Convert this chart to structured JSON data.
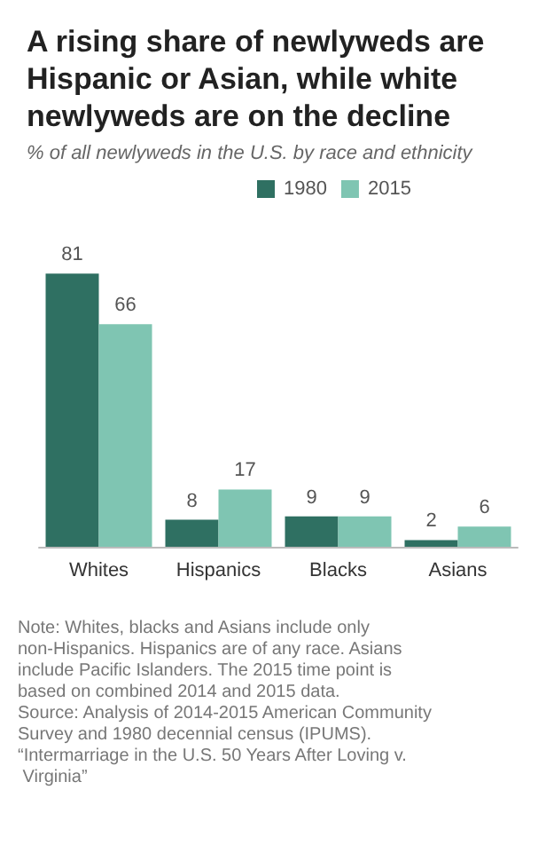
{
  "chart_data": {
    "type": "bar",
    "title": "A rising share of newlyweds are Hispanic or Asian, while white newlyweds are on the decline",
    "subtitle": "% of all newlyweds in the U.S. by race and ethnicity",
    "categories": [
      "Whites",
      "Hispanics",
      "Blacks",
      "Asians"
    ],
    "series": [
      {
        "name": "1980",
        "color": "#2f7062",
        "values": [
          81,
          8,
          9,
          2
        ]
      },
      {
        "name": "2015",
        "color": "#7fc5b2",
        "values": [
          66,
          17,
          9,
          6
        ]
      }
    ],
    "data_labels": true,
    "legend": "top",
    "grid": false,
    "annotations": [
      "Note: Whites, blacks and Asians include only non-Hispanics. Hispanics are of any race. Asians include Pacific Islanders. The 2015 time point is based on combined 2014 and 2015 data.",
      "Source: Analysis of 2014-2015 American Community Survey and 1980 decennial census (IPUMS).",
      "“Intermarriage in the U.S. 50 Years After Loving v. Virginia”"
    ]
  }
}
